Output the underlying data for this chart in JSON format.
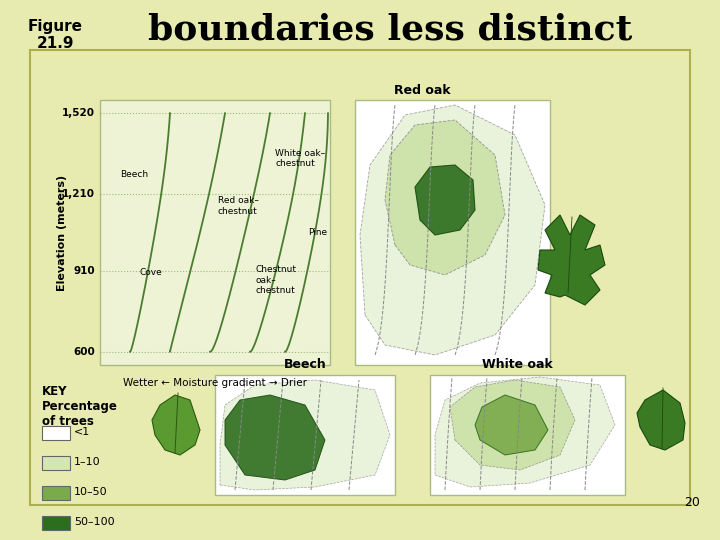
{
  "title": "boundaries less distinct",
  "figure_label": "Figure\n21.9",
  "page_number": "20",
  "background_color": "#e8ebb0",
  "panel_bg": "#f5f7e0",
  "title_fontsize": 26,
  "figure_label_fontsize": 11,
  "main_chart": {
    "elevation_labels": [
      "600",
      "910",
      "1,210",
      "1,520"
    ],
    "elevation_values": [
      600,
      910,
      1210,
      1520
    ],
    "y_label": "Elevation (meters)",
    "zone_labels": [
      "Beech",
      "Cove",
      "Red oak–\nchestnut",
      "White oak–\nchestnut",
      "Chestnut\noak–\nchestnut",
      "Pine"
    ],
    "x_label": "Wetter ← Moisture gradient → Drier"
  },
  "species_panels": [
    "Red oak",
    "Beech",
    "White oak"
  ],
  "key_title": "KEY\nPercentage\nof trees",
  "key_items": [
    "<1",
    "1–10",
    "10–50",
    "50–100"
  ],
  "key_colors": [
    "#ffffff",
    "#d4e6b5",
    "#7aaa4a",
    "#2d6e1e"
  ],
  "green_dark": "#2d6e1e",
  "green_medium": "#7aaa4a",
  "green_light": "#c8dfa0",
  "green_vlight": "#e0edcc",
  "line_color": "#4a7c2f",
  "dashed_color": "#888888",
  "zone_line_color": "#4a7c2f"
}
